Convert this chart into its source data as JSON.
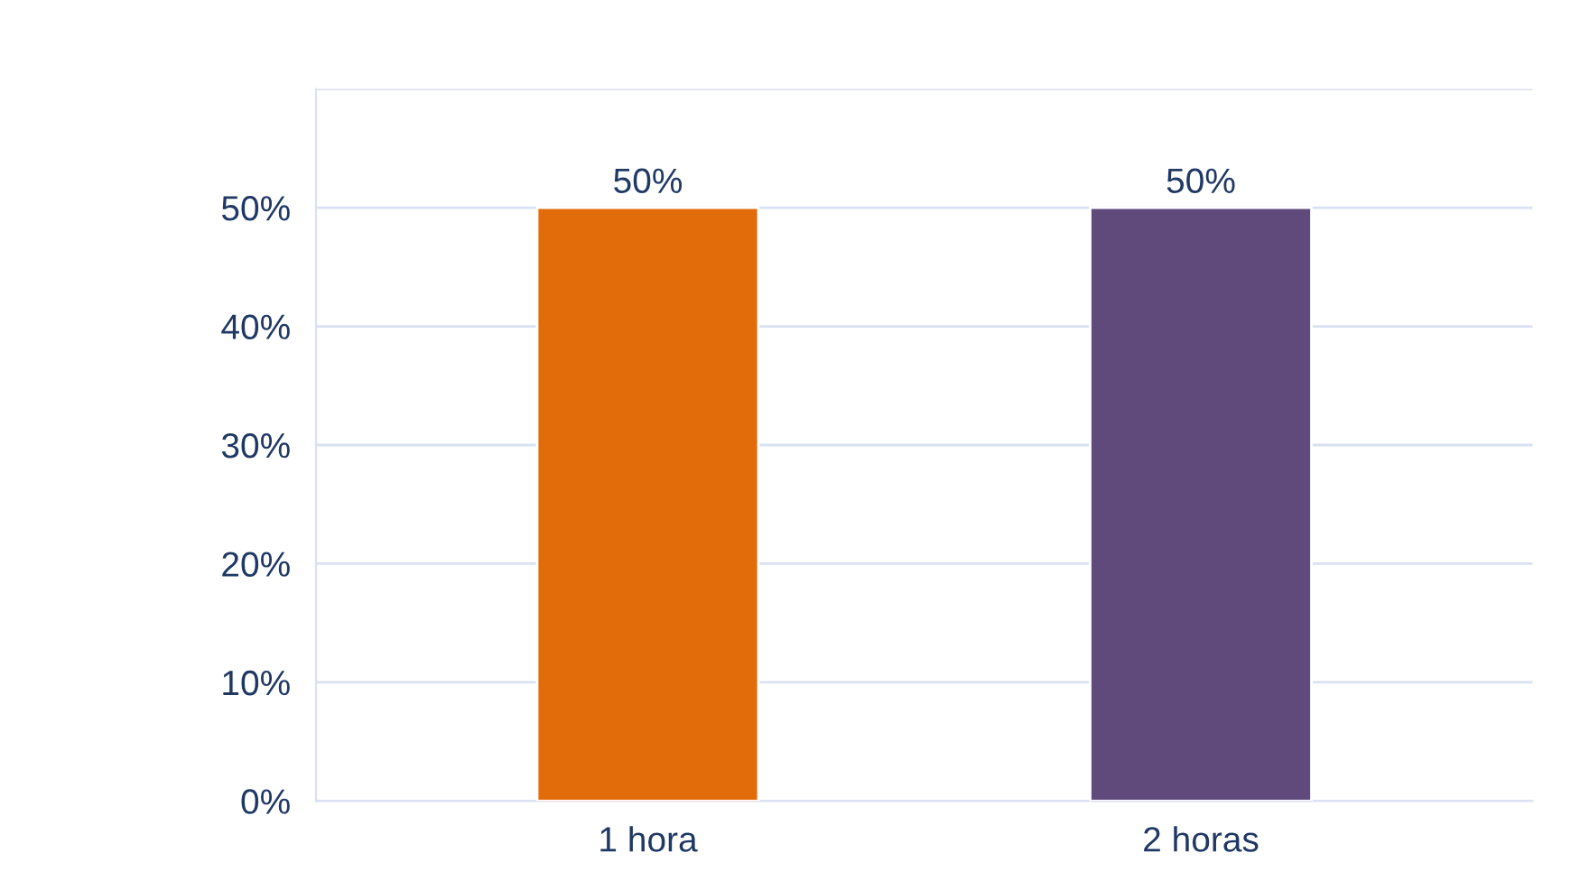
{
  "chart_data": {
    "type": "bar",
    "categories": [
      "1 hora",
      "2 horas"
    ],
    "values": [
      50,
      50
    ],
    "colors": [
      "#e36c0a",
      "#604a7b"
    ],
    "value_labels": [
      "50%",
      "50%"
    ],
    "ylim": [
      0,
      60
    ],
    "yticks": [
      {
        "value": 0,
        "label": "0%"
      },
      {
        "value": 10,
        "label": "10%"
      },
      {
        "value": 20,
        "label": "20%"
      },
      {
        "value": 30,
        "label": "30%"
      },
      {
        "value": 40,
        "label": "40%"
      },
      {
        "value": 50,
        "label": "50%"
      },
      {
        "value": 60,
        "label": null
      }
    ],
    "grid": "y"
  }
}
